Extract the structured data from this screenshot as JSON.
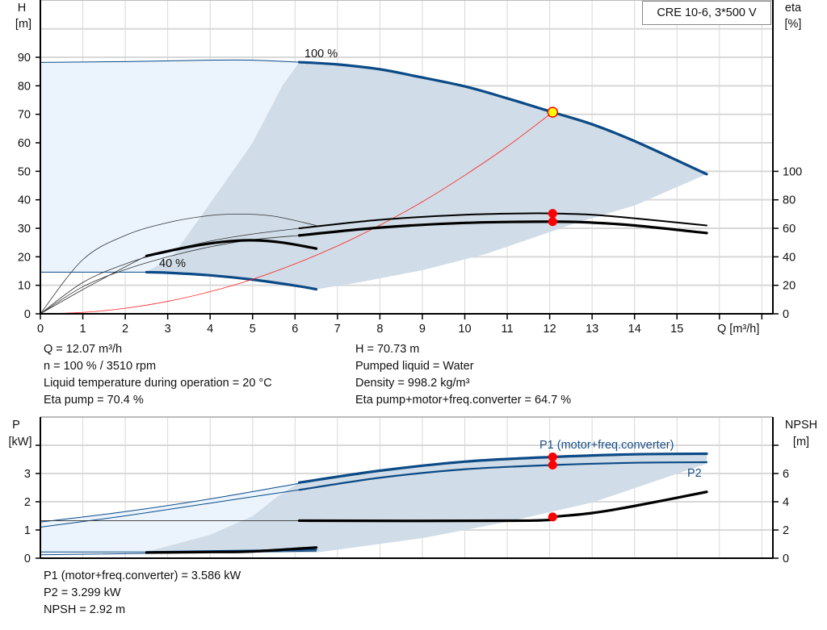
{
  "colors": {
    "curve_blue": "#0b4a86",
    "region_light": "#ebf4fd",
    "region_dark": "#d0dce7",
    "system_curve": "#ff2020",
    "point_red": "#ff0000",
    "op_point_fill": "#ffff00",
    "grid": "#d8d8d8"
  },
  "header": {
    "title": "CRE 10-6, 3*500 V"
  },
  "top_info": {
    "left": [
      "Q = 12.07 m³/h",
      "n = 100 % / 3510 rpm",
      "Liquid temperature during operation = 20 °C",
      "Eta pump = 70.4 %"
    ],
    "right": [
      "H = 70.73 m",
      "Pumped liquid = Water",
      "Density = 998.2 kg/m³",
      "Eta pump+motor+freq.converter = 64.7 %"
    ]
  },
  "bottom_info": [
    "P1 (motor+freq.converter) = 3.586 kW",
    "P2 = 3.299 kW",
    "NPSH = 2.92 m"
  ],
  "chart_data": [
    {
      "type": "line",
      "ylabel": "H",
      "yunit": "[m]",
      "y2label": "eta",
      "y2unit": "[%]",
      "xlabel": "Q [m³/h]",
      "xlim": [
        0,
        17
      ],
      "ylim": [
        0,
        100
      ],
      "y2lim": [
        0,
        200
      ],
      "grid": true,
      "x_ticks": [
        "0",
        "1",
        "2",
        "3",
        "4",
        "5",
        "6",
        "7",
        "8",
        "9",
        "10",
        "11",
        "12",
        "13",
        "14",
        "15"
      ],
      "y_ticks": [
        "0",
        "10",
        "20",
        "30",
        "40",
        "50",
        "60",
        "70",
        "80",
        "90"
      ],
      "y2_ticks": [
        "0",
        "20",
        "40",
        "60",
        "80",
        "100"
      ],
      "areas": [
        {
          "shade": "light",
          "points": [
            [
              0,
              88.2
            ],
            [
              2,
              88.5
            ],
            [
              4,
              89
            ],
            [
              5,
              89
            ],
            [
              6.1,
              88.3
            ],
            [
              5.7,
              80
            ],
            [
              5.0,
              60
            ],
            [
              4.06,
              40
            ],
            [
              3.1,
              20
            ],
            [
              2.5,
              14.6
            ],
            [
              0,
              14.6
            ]
          ]
        },
        {
          "shade": "dark",
          "points": [
            [
              6.1,
              88.3
            ],
            [
              7,
              87.5
            ],
            [
              8,
              85.8
            ],
            [
              8.8,
              83.5
            ],
            [
              10,
              79.8
            ],
            [
              11,
              75.6
            ],
            [
              12.07,
              70.73
            ],
            [
              13,
              66.5
            ],
            [
              14,
              60.6
            ],
            [
              15.7,
              49
            ],
            [
              14,
              38
            ],
            [
              12.6,
              31.8
            ],
            [
              12.07,
              29
            ],
            [
              10.5,
              21
            ],
            [
              9,
              15.3
            ],
            [
              7.5,
              11
            ],
            [
              6.5,
              8.6
            ],
            [
              6,
              9.9
            ],
            [
              5,
              12
            ],
            [
              4,
              13.5
            ],
            [
              3,
              14.4
            ],
            [
              2.5,
              14.6
            ],
            [
              3.1,
              20
            ],
            [
              4.06,
              40
            ],
            [
              5.0,
              60
            ],
            [
              5.7,
              80
            ],
            [
              6.1,
              88.3
            ]
          ]
        }
      ],
      "series": [
        {
          "axis": "H",
          "style": "blue-thin",
          "points": [
            [
              0,
              88.2
            ],
            [
              2,
              88.5
            ],
            [
              4,
              89
            ],
            [
              5,
              89
            ],
            [
              6.1,
              88.3
            ]
          ]
        },
        {
          "name": "100 %",
          "axis": "H",
          "style": "blue-thick",
          "points": [
            [
              6.1,
              88.3
            ],
            [
              7,
              87.5
            ],
            [
              8,
              85.8
            ],
            [
              8.8,
              83.5
            ],
            [
              10,
              79.8
            ],
            [
              11,
              75.6
            ],
            [
              12.07,
              70.73
            ],
            [
              13,
              66.5
            ],
            [
              14,
              60.6
            ],
            [
              15.7,
              49
            ]
          ]
        },
        {
          "axis": "H",
          "style": "blue-thin",
          "points": [
            [
              0,
              14.6
            ],
            [
              2.5,
              14.6
            ]
          ]
        },
        {
          "name": "40 %",
          "axis": "H",
          "style": "blue-thick",
          "points": [
            [
              2.5,
              14.6
            ],
            [
              3,
              14.4
            ],
            [
              4,
              13.5
            ],
            [
              5,
              12
            ],
            [
              6,
              9.9
            ],
            [
              6.5,
              8.6
            ]
          ]
        },
        {
          "axis": "H",
          "style": "system",
          "points": [
            [
              0,
              0
            ],
            [
              1,
              0.49
            ],
            [
              2,
              1.94
            ],
            [
              3,
              4.37
            ],
            [
              4,
              7.77
            ],
            [
              5,
              12.1
            ],
            [
              6,
              17.5
            ],
            [
              7,
              23.8
            ],
            [
              8,
              31.1
            ],
            [
              9,
              39.3
            ],
            [
              10,
              48.6
            ],
            [
              11,
              58.7
            ],
            [
              12.07,
              70.73
            ]
          ]
        },
        {
          "axis": "eta",
          "style": "black-thin",
          "points": [
            [
              0,
              0
            ],
            [
              1,
              22
            ],
            [
              2,
              35
            ],
            [
              3,
              44
            ],
            [
              4,
              51
            ],
            [
              5,
              56
            ],
            [
              6.1,
              60
            ]
          ]
        },
        {
          "axis": "eta",
          "style": "black-mid",
          "points": [
            [
              6.1,
              60
            ],
            [
              8,
              66
            ],
            [
              10,
              69.5
            ],
            [
              11.5,
              70.5
            ],
            [
              12.07,
              70.4
            ],
            [
              13,
              69.5
            ],
            [
              14,
              67
            ],
            [
              15.7,
              62
            ]
          ]
        },
        {
          "axis": "eta",
          "style": "black-thin",
          "points": [
            [
              0,
              0
            ],
            [
              1,
              19
            ],
            [
              2,
              31
            ],
            [
              3,
              40
            ],
            [
              4,
              47
            ],
            [
              5,
              52
            ],
            [
              6.1,
              55
            ]
          ]
        },
        {
          "axis": "eta",
          "style": "black-thick",
          "points": [
            [
              6.1,
              55
            ],
            [
              8,
              60.5
            ],
            [
              10,
              63.8
            ],
            [
              12.07,
              64.7
            ],
            [
              13,
              64
            ],
            [
              14,
              62
            ],
            [
              15.7,
              56.7
            ]
          ]
        },
        {
          "axis": "eta",
          "style": "black-thin",
          "points": [
            [
              0,
              0
            ],
            [
              1,
              38
            ],
            [
              2,
              55
            ],
            [
              3,
              64
            ],
            [
              4,
              69
            ],
            [
              4.7,
              70
            ],
            [
              5.5,
              68.5
            ],
            [
              6.5,
              62
            ]
          ]
        },
        {
          "axis": "eta",
          "style": "black-thin",
          "points": [
            [
              0,
              0
            ],
            [
              1,
              17
            ],
            [
              2,
              33
            ],
            [
              2.5,
              40.6
            ]
          ]
        },
        {
          "axis": "eta",
          "style": "black-thick",
          "points": [
            [
              2.5,
              40.6
            ],
            [
              3.5,
              47
            ],
            [
              4.3,
              50.5
            ],
            [
              5,
              51.6
            ],
            [
              5.7,
              50
            ],
            [
              6.5,
              45.8
            ]
          ]
        }
      ],
      "operating_point": {
        "q": 12.07,
        "h": 70.73
      },
      "markers": [
        {
          "axis": "eta",
          "q": 12.07,
          "value": 70.4
        },
        {
          "axis": "eta",
          "q": 12.07,
          "value": 64.7
        }
      ]
    },
    {
      "type": "line",
      "ylabel": "P",
      "yunit": "[kW]",
      "y2label": "NPSH",
      "y2unit": "[m]",
      "xlim": [
        0,
        17
      ],
      "ylim": [
        0,
        5
      ],
      "y2lim": [
        0,
        10
      ],
      "grid": true,
      "y_ticks": [
        "0",
        "1",
        "2",
        "3",
        ""
      ],
      "y2_ticks": [
        "0",
        "2",
        "4",
        "6",
        ""
      ],
      "areas": [
        {
          "shade": "light",
          "points": [
            [
              0,
              1.3
            ],
            [
              2,
              1.65
            ],
            [
              4,
              2.1
            ],
            [
              6.1,
              2.68
            ],
            [
              5.6,
              2.2
            ],
            [
              5,
              1.49
            ],
            [
              4,
              0.83
            ],
            [
              2.66,
              0.29
            ],
            [
              2.5,
              0.22
            ],
            [
              0,
              0.15
            ]
          ]
        },
        {
          "shade": "dark",
          "points": [
            [
              6.1,
              2.68
            ],
            [
              8,
              3.1
            ],
            [
              10,
              3.42
            ],
            [
              12.07,
              3.586
            ],
            [
              14,
              3.68
            ],
            [
              15.7,
              3.7
            ],
            [
              15.7,
              3.35
            ],
            [
              13,
              1.97
            ],
            [
              11,
              1.29
            ],
            [
              9,
              0.71
            ],
            [
              6.5,
              0.2
            ],
            [
              4,
              0.2
            ],
            [
              2.5,
              0.22
            ],
            [
              2.66,
              0.29
            ],
            [
              4,
              0.83
            ],
            [
              5,
              1.49
            ],
            [
              5.6,
              2.2
            ],
            [
              6.1,
              2.68
            ]
          ]
        }
      ],
      "series": [
        {
          "axis": "P",
          "style": "blue-thin",
          "points": [
            [
              0,
              1.28
            ],
            [
              2,
              1.65
            ],
            [
              4,
              2.1
            ],
            [
              6.1,
              2.65
            ]
          ]
        },
        {
          "name": "P1 (motor+freq.converter)",
          "axis": "P",
          "style": "blue-thick",
          "points": [
            [
              6.1,
              2.68
            ],
            [
              8,
              3.1
            ],
            [
              10,
              3.42
            ],
            [
              12.07,
              3.586
            ],
            [
              14,
              3.68
            ],
            [
              15.7,
              3.7
            ]
          ]
        },
        {
          "axis": "P",
          "style": "blue-thin",
          "points": [
            [
              0,
              1.1
            ],
            [
              2,
              1.5
            ],
            [
              4,
              1.95
            ],
            [
              6.1,
              2.42
            ]
          ]
        },
        {
          "name": "P2",
          "axis": "P",
          "style": "blue-mid",
          "points": [
            [
              6.1,
              2.42
            ],
            [
              8,
              2.85
            ],
            [
              10,
              3.15
            ],
            [
              12.07,
              3.299
            ],
            [
              14,
              3.38
            ],
            [
              15.7,
              3.4
            ]
          ]
        },
        {
          "axis": "NPSH",
          "style": "black-thin",
          "points": [
            [
              0,
              2.66
            ],
            [
              6.1,
              2.66
            ]
          ]
        },
        {
          "axis": "NPSH",
          "style": "black-thick",
          "points": [
            [
              6.1,
              2.66
            ],
            [
              11.5,
              2.66
            ],
            [
              12.07,
              2.92
            ],
            [
              13,
              3.2
            ],
            [
              14,
              3.7
            ],
            [
              15.7,
              4.7
            ]
          ]
        },
        {
          "axis": "P",
          "style": "blue-thin",
          "points": [
            [
              0,
              0.22
            ],
            [
              2.5,
              0.22
            ]
          ]
        },
        {
          "axis": "P",
          "style": "blue-mid",
          "points": [
            [
              2.5,
              0.22
            ],
            [
              6.5,
              0.3
            ]
          ]
        },
        {
          "axis": "P",
          "style": "blue-thin",
          "points": [
            [
              0,
              0.12
            ],
            [
              6.5,
              0.25
            ]
          ]
        },
        {
          "axis": "NPSH",
          "style": "black-thick",
          "points": [
            [
              2.5,
              0.4
            ],
            [
              4,
              0.44
            ],
            [
              5,
              0.48
            ],
            [
              6.5,
              0.76
            ]
          ]
        }
      ],
      "markers": [
        {
          "axis": "P",
          "q": 12.07,
          "value": 3.586
        },
        {
          "axis": "P",
          "q": 12.07,
          "value": 3.299
        },
        {
          "axis": "NPSH",
          "q": 12.07,
          "value": 2.92
        }
      ]
    }
  ]
}
